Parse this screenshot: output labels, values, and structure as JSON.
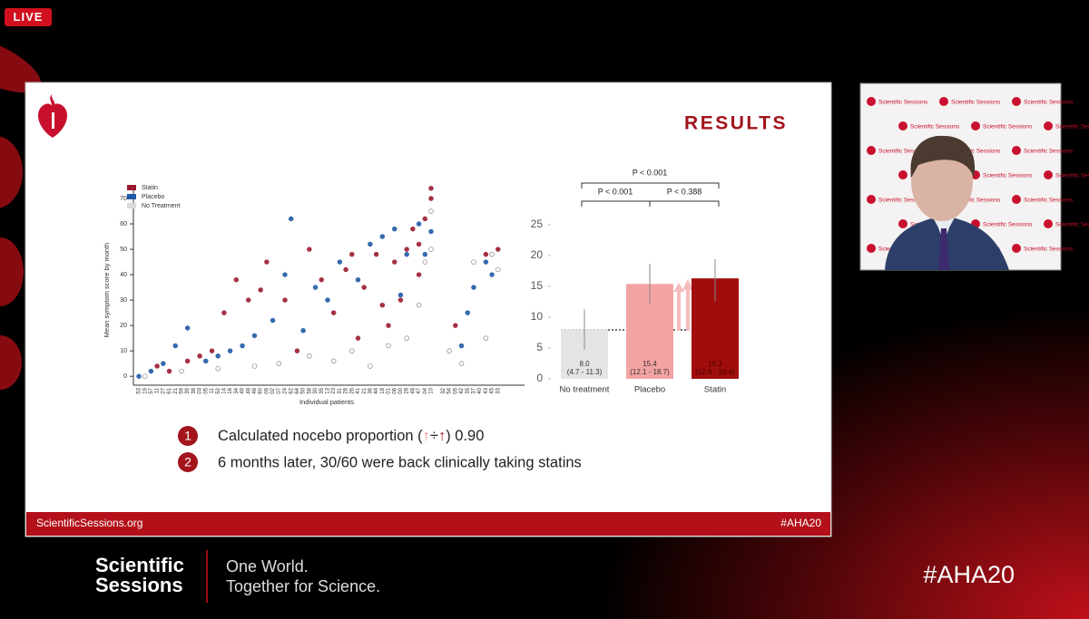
{
  "live_badge": "LIVE",
  "slide": {
    "title": "RESULTS",
    "footer_left": "ScientificSessions.org",
    "footer_right": "#AHA20",
    "scatter": {
      "type": "scatter",
      "y_label": "Mean symptom score by month",
      "x_label": "Individual patients",
      "ylim": [
        -3.5,
        75
      ],
      "yticks": [
        0,
        10,
        20,
        30,
        40,
        50,
        60,
        70
      ],
      "categories": [
        "53",
        "19",
        "57",
        "11",
        "27",
        "61",
        "21",
        "59",
        "39",
        "38",
        "03",
        "05",
        "11",
        "52",
        "14",
        "16",
        "34",
        "49",
        "48",
        "46",
        "60",
        "09",
        "02",
        "07",
        "24",
        "62",
        "64",
        "50",
        "58",
        "30",
        "35",
        "13",
        "23",
        "31",
        "28",
        "26",
        "41",
        "21",
        "36",
        "44",
        "18",
        "01",
        "06",
        "00",
        "28",
        "48",
        "47",
        "04",
        "10",
        null,
        "32",
        "54",
        "05",
        "42",
        "35",
        "37",
        "40",
        "43",
        "45",
        "33"
      ],
      "series": [
        {
          "name": "Statin",
          "color": "#9b1b30",
          "x": [
            3,
            5,
            8,
            10,
            12,
            14,
            16,
            18,
            20,
            21,
            24,
            26,
            28,
            30,
            32,
            34,
            35,
            36,
            37,
            39,
            40,
            41,
            42,
            43,
            44,
            45,
            46,
            46,
            47,
            48,
            48,
            52,
            57,
            59
          ],
          "values": [
            4,
            2,
            6,
            8,
            10,
            25,
            38,
            30,
            34,
            45,
            30,
            10,
            50,
            38,
            25,
            42,
            48,
            15,
            35,
            48,
            28,
            20,
            45,
            30,
            50,
            58,
            40,
            52,
            62,
            74,
            70,
            20,
            48,
            50
          ]
        },
        {
          "name": "Placebo",
          "color": "#1f5aa6",
          "x": [
            0,
            2,
            4,
            6,
            8,
            11,
            13,
            15,
            17,
            19,
            22,
            24,
            25,
            27,
            29,
            31,
            33,
            36,
            38,
            40,
            42,
            43,
            44,
            46,
            47,
            48,
            53,
            54,
            55,
            57,
            58
          ],
          "values": [
            0,
            2,
            5,
            12,
            19,
            6,
            8,
            10,
            12,
            16,
            22,
            40,
            62,
            18,
            35,
            30,
            45,
            38,
            52,
            55,
            58,
            32,
            48,
            60,
            48,
            57,
            12,
            25,
            35,
            45,
            40
          ]
        },
        {
          "name": "No Treatment",
          "color": "#d9d9d9",
          "x": [
            1,
            7,
            13,
            19,
            23,
            28,
            32,
            35,
            38,
            41,
            44,
            46,
            47,
            48,
            48,
            51,
            53,
            55,
            57,
            58,
            59
          ],
          "values": [
            0,
            2,
            3,
            4,
            5,
            8,
            6,
            10,
            4,
            12,
            15,
            28,
            45,
            65,
            50,
            10,
            5,
            45,
            15,
            48,
            42
          ]
        }
      ]
    },
    "bars": {
      "type": "bar",
      "categories": [
        "No treatment",
        "Placebo",
        "Statin"
      ],
      "values": [
        8.0,
        15.4,
        16.3
      ],
      "value_labels": [
        "8.0",
        "15.4",
        "16.3"
      ],
      "ci": [
        [
          4.7,
          11.3
        ],
        [
          12.1,
          18.7
        ],
        [
          12.6,
          19.4
        ]
      ],
      "ci_labels": [
        "(4.7 - 11.3)",
        "(12.1 - 18.7)",
        "(12.6 - 19.4)"
      ],
      "colors": [
        "#e4e5e2",
        "#f4a3a3",
        "#a10d0d"
      ],
      "ylim": [
        0,
        25
      ],
      "yticks": [
        0,
        5,
        10,
        15,
        20,
        25
      ],
      "p_values": [
        "P < 0.001",
        "P < 0.001",
        "P < 0.388"
      ]
    },
    "items": [
      {
        "number": "1",
        "text_before": "Calculated nocebo proportion (",
        "text_after": ") 0.90"
      },
      {
        "number": "2",
        "text": "6 months later, 30/60 were back clinically taking statins"
      }
    ]
  },
  "webcam": {
    "backdrop_text": "Scientific Sessions"
  },
  "bottom": {
    "brand_line1": "Scientific",
    "brand_line2": "Sessions",
    "tagline1": "One World.",
    "tagline2": "Together for Science.",
    "hashtag": "#AHA20"
  }
}
